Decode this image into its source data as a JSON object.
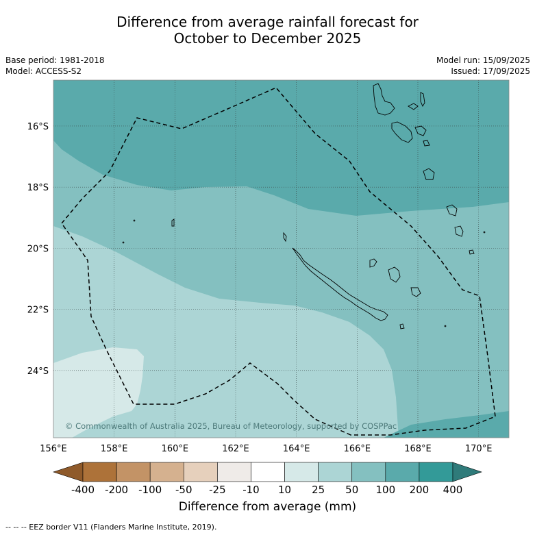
{
  "title": {
    "line1": "Difference from average rainfall forecast for",
    "line2": "October to December 2025"
  },
  "meta_left": {
    "base_period": "Base period: 1981-2018",
    "model": "Model: ACCESS-S2"
  },
  "meta_right": {
    "model_run": "Model run: 15/09/2025",
    "issued": "Issued: 17/09/2025"
  },
  "map": {
    "lon_range": [
      156,
      171
    ],
    "lat_range": [
      -26.2,
      -14.5
    ],
    "lon_ticks": [
      "156°E",
      "158°E",
      "160°E",
      "162°E",
      "164°E",
      "166°E",
      "168°E",
      "170°E"
    ],
    "lat_ticks": [
      "16°S",
      "18°S",
      "20°S",
      "22°S",
      "24°S"
    ],
    "copyright": "© Commonwealth of Australia 2025, Bureau of Meteorology, supported by COSPPac",
    "grid": true
  },
  "colorbar": {
    "labels": [
      "-400",
      "-200",
      "-100",
      "-50",
      "-25",
      "-10",
      "10",
      "25",
      "50",
      "100",
      "200",
      "400"
    ],
    "colors": [
      "#ad7239",
      "#c39366",
      "#d5b18f",
      "#e6d0bc",
      "#efebe8",
      "#ffffff",
      "#d6e9e8",
      "#acd5d5",
      "#84c0c0",
      "#5aaaab",
      "#339a98"
    ],
    "low_extend_color": "#8f5a2a",
    "high_extend_color": "#2f7b7a",
    "title": "Difference from average (mm)"
  },
  "footnote": "--  --  -- EEZ border V11 (Flanders Marine Institute, 2019)."
}
